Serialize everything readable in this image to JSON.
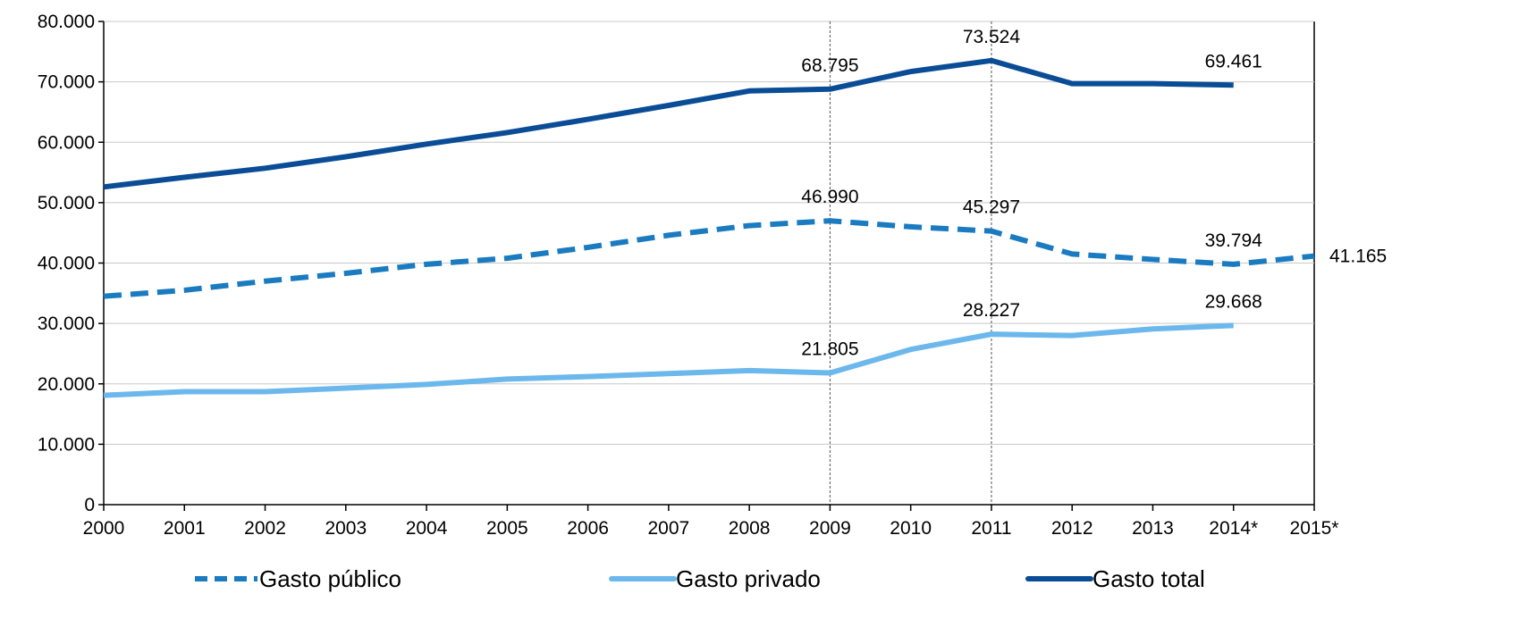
{
  "chart_data": {
    "type": "line",
    "title": "",
    "xlabel": "",
    "ylabel": "",
    "categories": [
      "2000",
      "2001",
      "2002",
      "2003",
      "2004",
      "2005",
      "2006",
      "2007",
      "2008",
      "2009",
      "2010",
      "2011",
      "2012",
      "2013",
      "2014*",
      "2015*"
    ],
    "ylim": [
      0,
      80000
    ],
    "yticks": [
      0,
      10000,
      20000,
      30000,
      40000,
      50000,
      60000,
      70000,
      80000
    ],
    "ytick_labels": [
      "0",
      "10.000",
      "20.000",
      "30.000",
      "40.000",
      "50.000",
      "60.000",
      "70.000",
      "80.000"
    ],
    "grid": true,
    "reference_lines": [
      "2009",
      "2011"
    ],
    "legend_position": "bottom",
    "series": [
      {
        "name": "Gasto público",
        "color": "#1a7bc0",
        "style": "dashed",
        "values": [
          34500,
          35500,
          37000,
          38300,
          39800,
          40800,
          42600,
          44600,
          46200,
          46990,
          46000,
          45297,
          41500,
          40600,
          39794,
          41165
        ],
        "data_labels": [
          {
            "index": 9,
            "text": "46.990"
          },
          {
            "index": 11,
            "text": "45.297"
          },
          {
            "index": 14,
            "text": "39.794"
          },
          {
            "index": 15,
            "text": "41.165"
          }
        ]
      },
      {
        "name": "Gasto privado",
        "color": "#6cb8ec",
        "style": "solid",
        "values": [
          18100,
          18700,
          18700,
          19300,
          19900,
          20800,
          21200,
          21700,
          22200,
          21805,
          25700,
          28227,
          28000,
          29100,
          29668,
          null
        ],
        "data_labels": [
          {
            "index": 9,
            "text": "21.805"
          },
          {
            "index": 11,
            "text": "28.227"
          },
          {
            "index": 14,
            "text": "29.668"
          }
        ]
      },
      {
        "name": "Gasto total",
        "color": "#0a4d96",
        "style": "solid",
        "values": [
          52600,
          54200,
          55700,
          57600,
          59700,
          61600,
          63800,
          66100,
          68500,
          68795,
          71700,
          73524,
          69700,
          69700,
          69461,
          null
        ],
        "data_labels": [
          {
            "index": 9,
            "text": "68.795"
          },
          {
            "index": 11,
            "text": "73.524"
          },
          {
            "index": 14,
            "text": "69.461"
          }
        ]
      }
    ]
  }
}
